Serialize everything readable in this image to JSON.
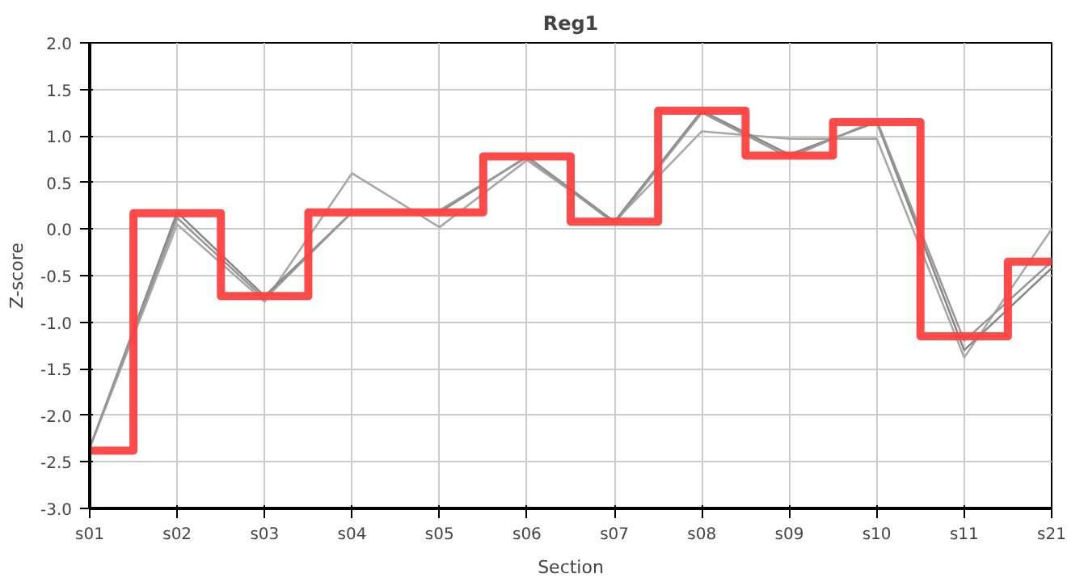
{
  "chart_data": {
    "type": "line",
    "title": "Reg1",
    "xlabel": "Section",
    "ylabel": "Z-score",
    "categories": [
      "s01",
      "s02",
      "s03",
      "s04",
      "s05",
      "s06",
      "s07",
      "s08",
      "s09",
      "s10",
      "s11",
      "s21"
    ],
    "series": [
      {
        "color": "#a8a8a8",
        "values": [
          -2.35,
          0.05,
          -0.78,
          0.6,
          0.02,
          0.74,
          0.08,
          1.05,
          0.97,
          0.97,
          -1.38,
          0.0
        ]
      },
      {
        "color": "#888888",
        "values": [
          -2.35,
          0.18,
          -0.72,
          0.18,
          0.18,
          0.78,
          0.08,
          1.27,
          0.8,
          1.15,
          -1.3,
          -0.42
        ]
      },
      {
        "color": "#989898",
        "values": [
          -2.35,
          0.12,
          -0.75,
          0.18,
          0.2,
          0.77,
          0.06,
          1.25,
          0.77,
          1.17,
          -1.2,
          -0.35
        ]
      },
      {
        "type": "step",
        "color": "#ff4040",
        "values": [
          -2.38,
          0.17,
          -0.72,
          0.18,
          0.18,
          0.78,
          0.08,
          1.27,
          0.79,
          1.15,
          -1.15,
          -0.35
        ]
      }
    ],
    "ylim": [
      -3.0,
      2.0
    ],
    "yticks": [
      {
        "value": -3,
        "label": "-3.0"
      },
      {
        "value": -2.5,
        "label": "-2.5"
      },
      {
        "value": -2,
        "label": "-2.0"
      },
      {
        "value": -1.5,
        "label": "-1.5"
      },
      {
        "value": -1,
        "label": "-1.0"
      },
      {
        "value": -0.5,
        "label": "-0.5"
      },
      {
        "value": 0,
        "label": "0.0"
      },
      {
        "value": 0.5,
        "label": "0.5"
      },
      {
        "value": 1,
        "label": "1.0"
      },
      {
        "value": 1.5,
        "label": "1.5"
      },
      {
        "value": 2,
        "label": "2.0"
      }
    ],
    "grid": true,
    "marker": "none",
    "line_style": "solid"
  }
}
